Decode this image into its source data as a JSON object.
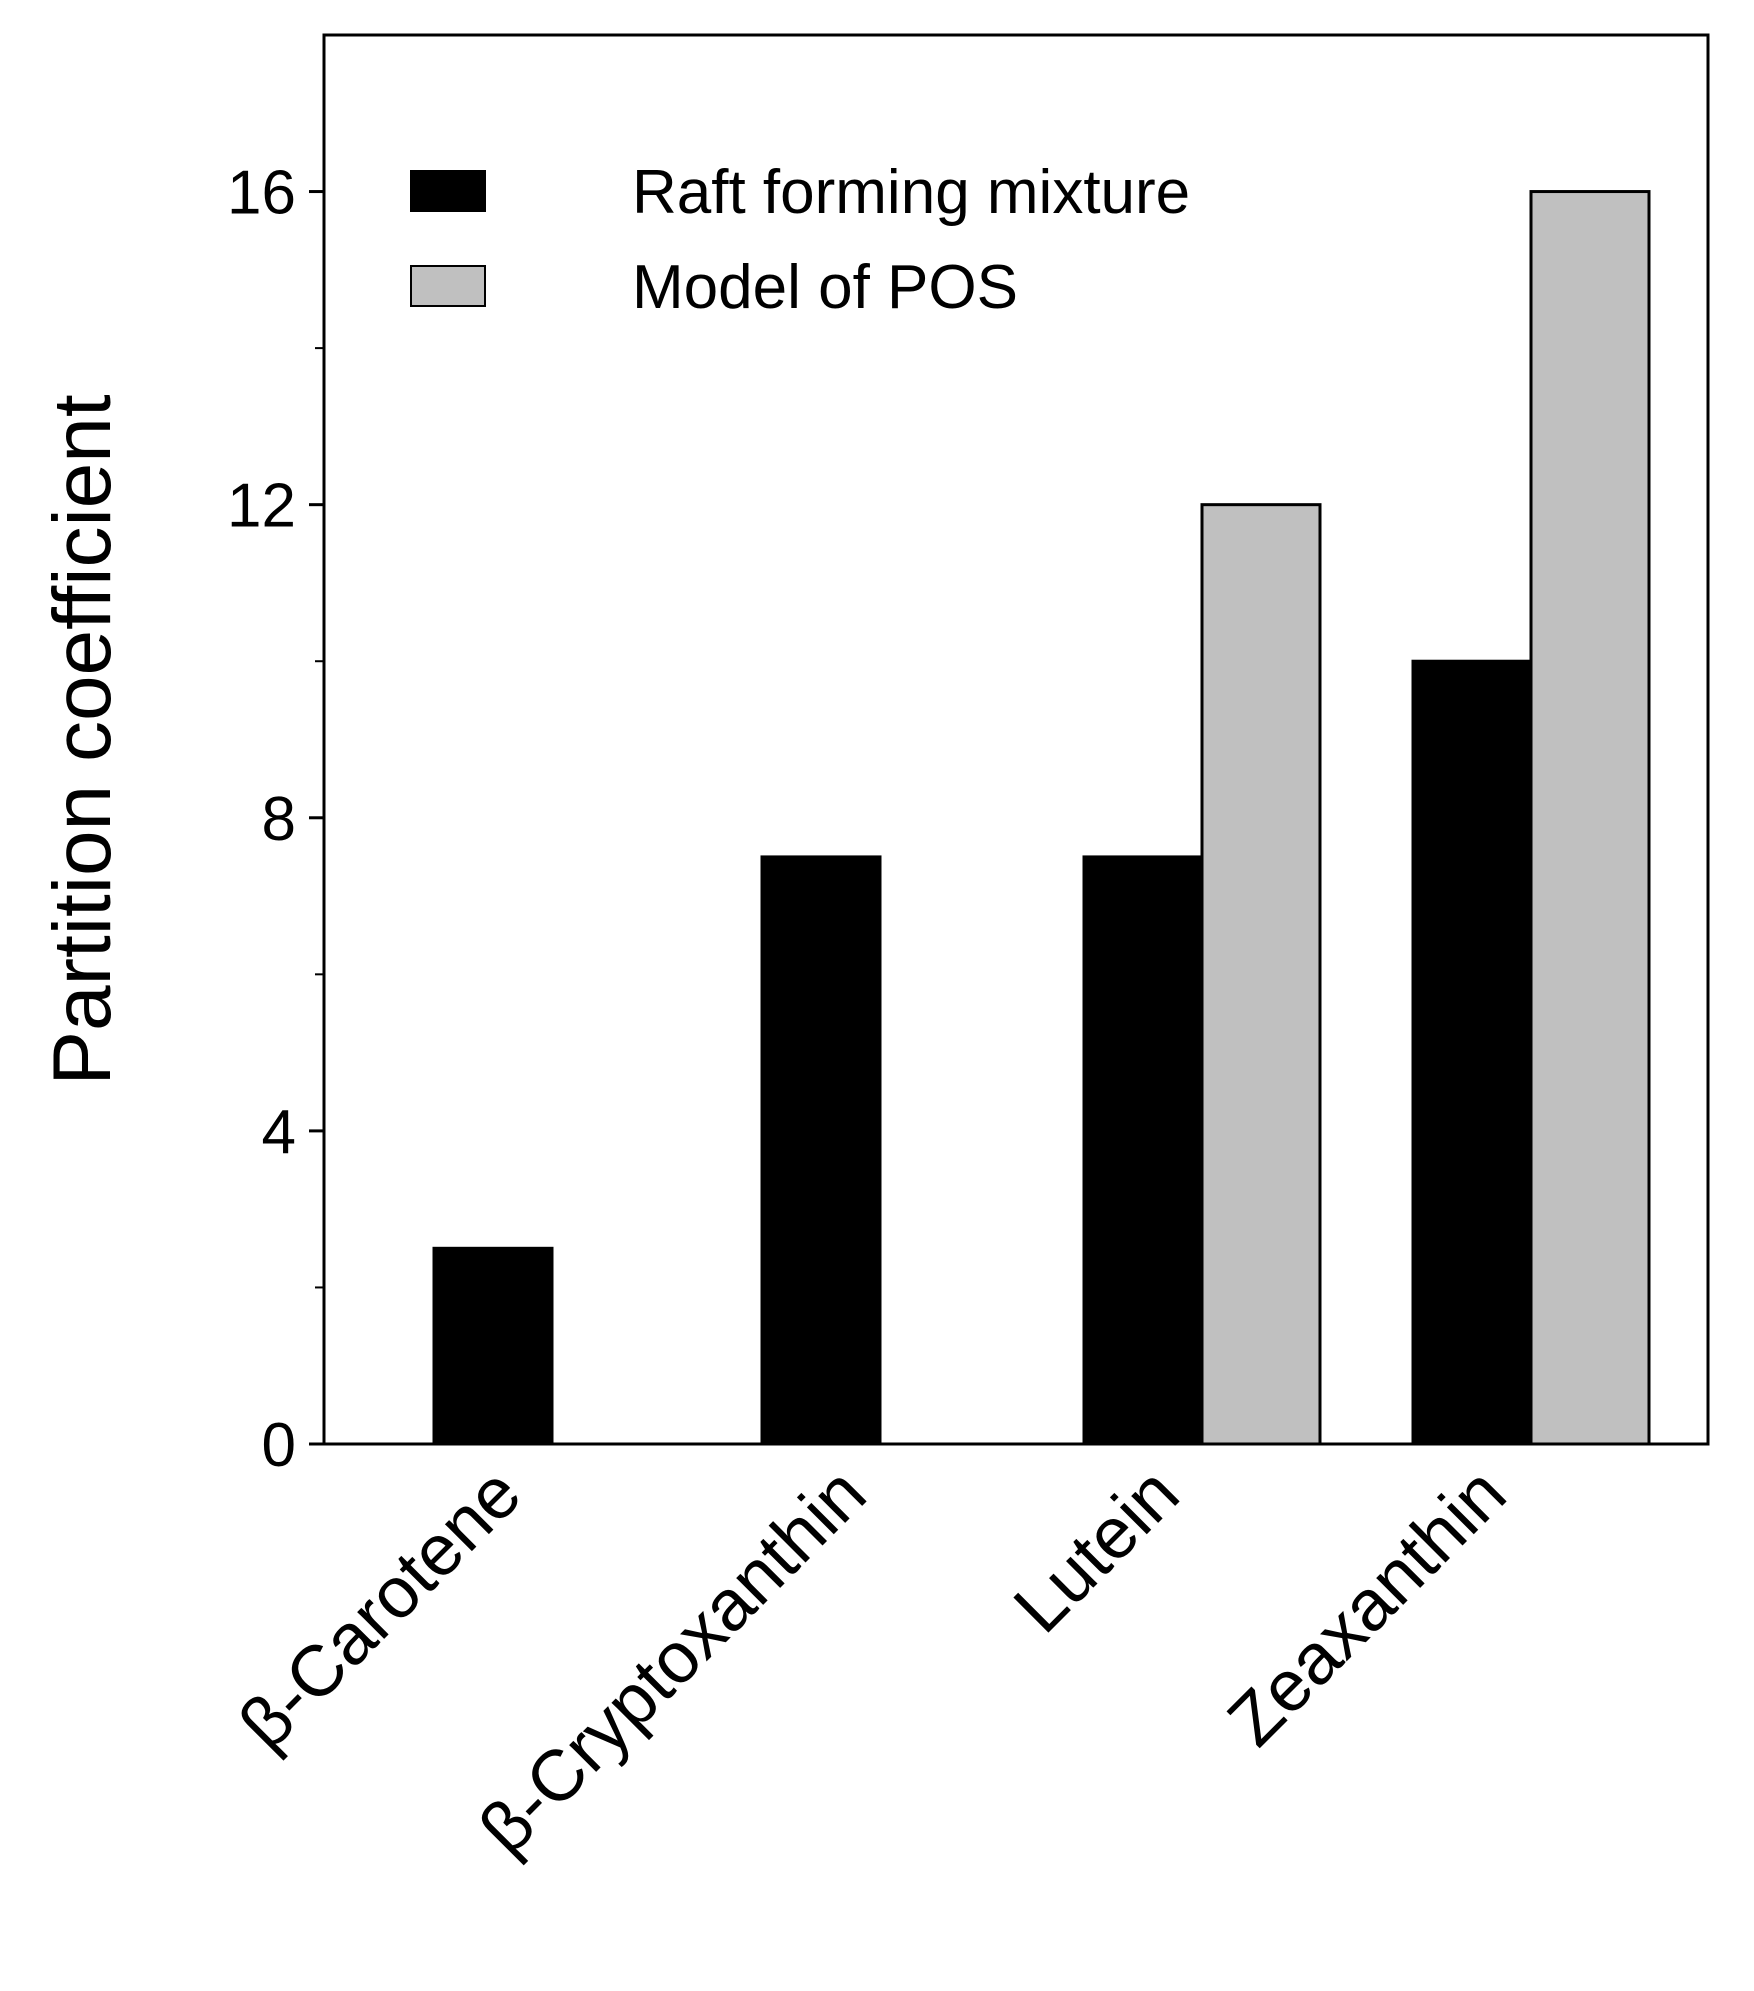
{
  "chart_data": {
    "type": "bar",
    "title": "",
    "xlabel": "",
    "ylabel": "Partition coefficient",
    "ylim": [
      0,
      18
    ],
    "yticks_major": [
      0,
      4,
      8,
      12,
      16
    ],
    "yticks_minor": [
      2,
      6,
      10,
      14
    ],
    "categories": [
      "β-Carotene",
      "β-Cryptoxanthin",
      "Lutein",
      "Zeaxanthin"
    ],
    "series": [
      {
        "name": "Raft forming mixture",
        "color": "#000000",
        "values": [
          2.5,
          7.5,
          7.5,
          10
        ]
      },
      {
        "name": "Model of POS",
        "color": "#c0c0c0",
        "values": [
          null,
          null,
          12,
          16
        ]
      }
    ],
    "grid": false,
    "legend_position": "top-left"
  }
}
